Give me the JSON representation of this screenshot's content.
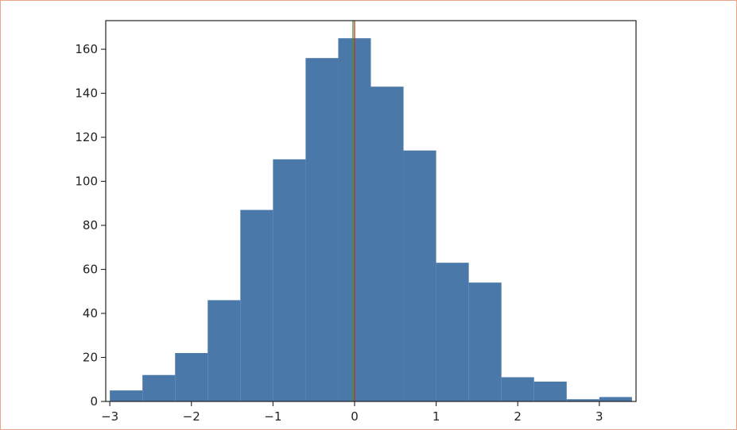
{
  "chart_data": {
    "type": "bar",
    "title": "",
    "xlabel": "",
    "ylabel": "",
    "bin_edges": [
      -3.0,
      -2.6,
      -2.2,
      -1.8,
      -1.4,
      -1.0,
      -0.6,
      -0.2,
      0.2,
      0.6,
      1.0,
      1.4,
      1.8,
      2.2,
      2.6,
      3.0,
      3.4
    ],
    "values": [
      5,
      12,
      22,
      46,
      87,
      110,
      156,
      165,
      143,
      114,
      63,
      54,
      11,
      9,
      1,
      2
    ],
    "xlim": [
      -3.05,
      3.45
    ],
    "ylim": [
      0,
      173
    ],
    "x_ticks": [
      -3,
      -2,
      -1,
      0,
      1,
      2,
      3
    ],
    "x_tick_labels": [
      "−3",
      "−2",
      "−1",
      "0",
      "1",
      "2",
      "3"
    ],
    "y_ticks": [
      0,
      20,
      40,
      60,
      80,
      100,
      120,
      140,
      160
    ],
    "y_tick_labels": [
      "0",
      "20",
      "40",
      "60",
      "80",
      "100",
      "120",
      "140",
      "160"
    ],
    "vertical_lines": [
      {
        "x": 0.0,
        "color": "#d62728"
      },
      {
        "x": -0.02,
        "color": "#2ca02c"
      }
    ],
    "bar_color": "#4a78a8",
    "grid": false,
    "legend": "none"
  }
}
